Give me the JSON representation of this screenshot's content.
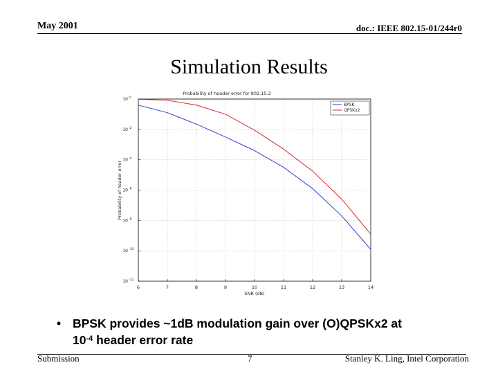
{
  "header": {
    "date": "May 2001",
    "doc_id": "doc.: IEEE 802.15-01/244r0"
  },
  "slide": {
    "title": "Simulation Results",
    "bullet": {
      "marker": "•",
      "line1": "BPSK provides ~1dB modulation gain over (O)QPSKx2 at",
      "line2_prefix": "10",
      "line2_exp": "-4",
      "line2_suffix": " header error rate"
    }
  },
  "footer": {
    "left": "Submission",
    "page": "7",
    "right": "Stanley K. Ling, Intel Corporation"
  },
  "colors": {
    "bpsk": "#2f3fd0",
    "qpsk": "#d42a2a"
  },
  "chart_data": {
    "type": "line",
    "title": "Probability of header error for 802.15.3",
    "xlabel": "SNR (dB)",
    "ylabel": "Probability of header error",
    "x_ticks": [
      "6",
      "7",
      "8",
      "9",
      "10",
      "11",
      "12",
      "13",
      "14"
    ],
    "y_ticks": [
      "10^0",
      "10^-2",
      "10^-4",
      "10^-6",
      "10^-8",
      "10^-10",
      "10^-12"
    ],
    "xlim": [
      6,
      14
    ],
    "ylim_log10": [
      -12,
      0
    ],
    "yscale": "log",
    "grid": true,
    "legend_position": "top-right",
    "series": [
      {
        "name": "BPSK",
        "x": [
          6,
          7,
          8,
          9,
          10,
          11,
          12,
          13,
          14
        ],
        "log10_y": [
          -0.4,
          -0.9,
          -1.65,
          -2.5,
          -3.4,
          -4.5,
          -5.9,
          -7.7,
          -9.9
        ]
      },
      {
        "name": "QPSKx2",
        "x": [
          6,
          7,
          8,
          9,
          10,
          11,
          12,
          13,
          14
        ],
        "log10_y": [
          -0.02,
          -0.08,
          -0.4,
          -1.0,
          -2.05,
          -3.3,
          -4.75,
          -6.6,
          -8.9
        ]
      }
    ]
  }
}
